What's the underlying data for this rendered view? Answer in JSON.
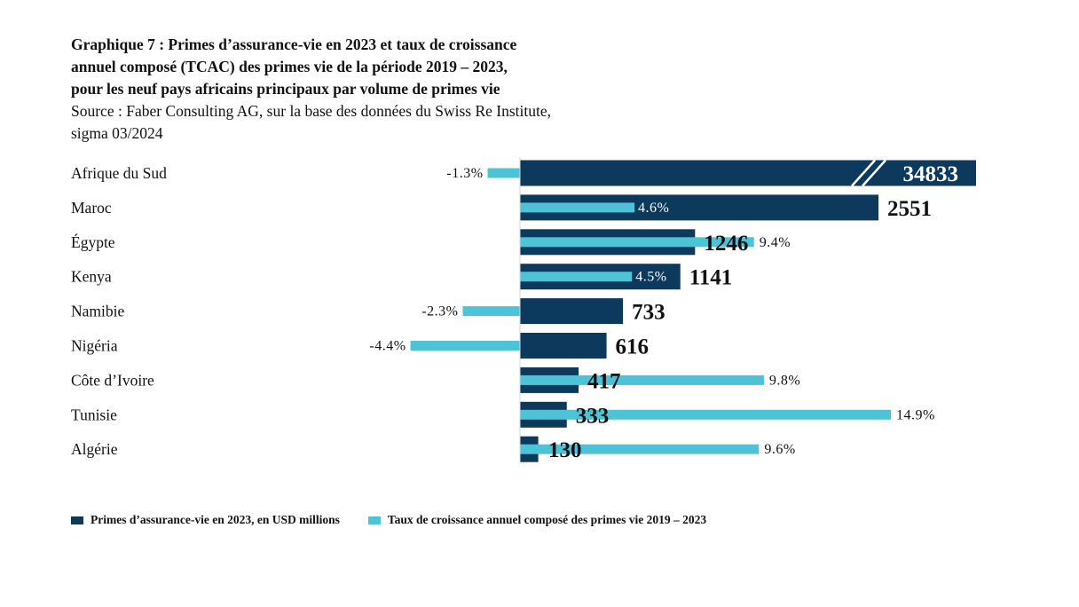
{
  "title": {
    "lines": [
      "Graphique 7 : Primes d’assurance-vie en 2023 et taux de croissance",
      "annuel composé (TCAC) des primes vie de la période 2019 – 2023,",
      "pour les neuf pays africains principaux par volume de primes vie"
    ],
    "source_lines": [
      "Source : Faber Consulting AG, sur la base des données du Swiss Re Institute,",
      "sigma 03/2024"
    ]
  },
  "colors": {
    "premium": "#0d3a5c",
    "cagr": "#4cc3d6"
  },
  "chart_data": {
    "type": "bar",
    "orientation": "horizontal",
    "categories": [
      "Afrique du Sud",
      "Maroc",
      "Égypte",
      "Kenya",
      "Namibie",
      "Nigéria",
      "Côte d’Ivoire",
      "Tunisie",
      "Algérie"
    ],
    "series": [
      {
        "name": "Primes d’assurance-vie en 2023, en USD millions",
        "values": [
          34833,
          2551,
          1246,
          1141,
          733,
          616,
          417,
          333,
          130
        ],
        "labels": [
          "34833",
          "2551",
          "1246",
          "1141",
          "733",
          "616",
          "417",
          "333",
          "130"
        ],
        "axis_break_on": "Afrique du Sud"
      },
      {
        "name": "Taux de croissance annuel composé des primes vie 2019 – 2023",
        "values": [
          -1.3,
          4.6,
          9.4,
          4.5,
          -2.3,
          -4.4,
          9.8,
          14.9,
          9.6
        ],
        "labels": [
          "-1.3%",
          "4.6%",
          "9.4%",
          "4.5%",
          "-2.3%",
          "-4.4%",
          "9.8%",
          "14.9%",
          "9.6%"
        ]
      }
    ],
    "premium_xlim": [
      0,
      3200
    ],
    "cagr_xlim": [
      -5,
      15
    ],
    "legend_position": "bottom-left"
  },
  "legend": {
    "premium_label": "Primes d’assurance-vie en 2023, en USD millions",
    "cagr_label": "Taux de croissance annuel composé des primes vie 2019 – 2023"
  }
}
